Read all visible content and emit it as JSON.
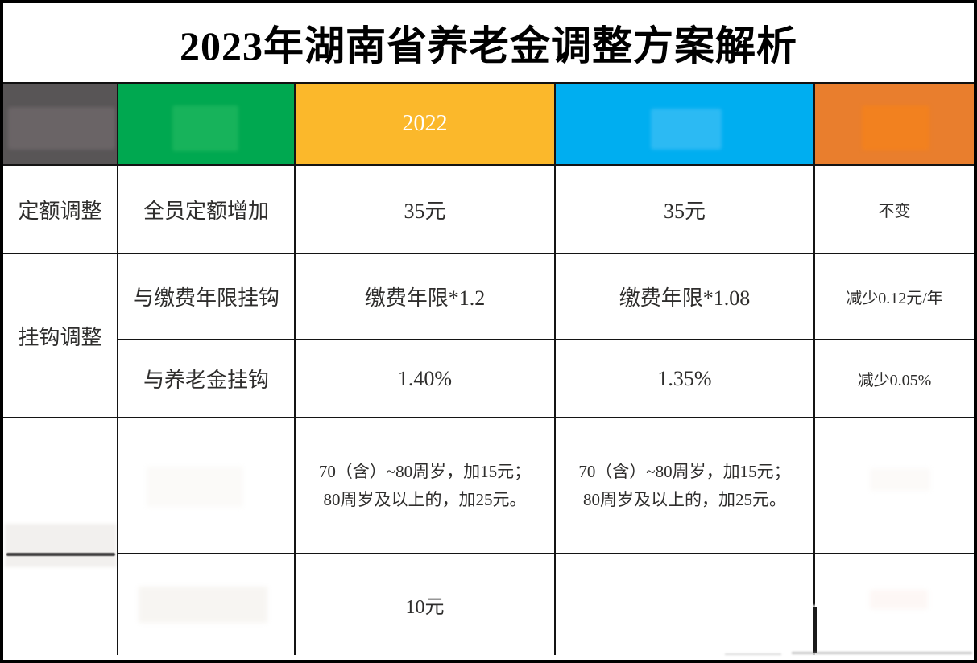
{
  "title": "2023年湖南省养老金调整方案解析",
  "header": {
    "cells": [
      {
        "name": "category",
        "label": "",
        "bg": "#585556",
        "erased_box": "#6A6466"
      },
      {
        "name": "item",
        "label": "",
        "bg": "#00A850",
        "erased_box": "#17B35B"
      },
      {
        "name": "year-2022",
        "label": "2022",
        "bg": "#FBB82B",
        "label_color": "#FFFFFF"
      },
      {
        "name": "year-2023",
        "label": "",
        "bg": "#00AEF0",
        "erased_box": "#2CBAF3"
      },
      {
        "name": "change",
        "label": "",
        "bg": "#E97E2D",
        "erased_box": "#F2811F"
      }
    ]
  },
  "rows": [
    {
      "category": "定额调整",
      "item": "全员定额增加",
      "y2022": "35元",
      "y2023": "35元",
      "change": "不变"
    },
    {
      "category": "挂钩调整",
      "item": "与缴费年限挂钩",
      "y2022": "缴费年限*1.2",
      "y2023": "缴费年限*1.08",
      "change": "减少0.12元/年"
    },
    {
      "item": "与养老金挂钩",
      "y2022": "1.40%",
      "y2023": "1.35%",
      "change": "减少0.05%"
    },
    {
      "category": "",
      "item": "",
      "y2022_line1": "70（含）~80周岁，加15元；",
      "y2022_line2": "80周岁及以上的，加25元。",
      "y2023_line1": "70（含）~80周岁，加15元；",
      "y2023_line2": "80周岁及以上的，加25元。",
      "change": ""
    },
    {
      "item": "",
      "y2022": "10元",
      "y2023": "",
      "change": ""
    }
  ]
}
